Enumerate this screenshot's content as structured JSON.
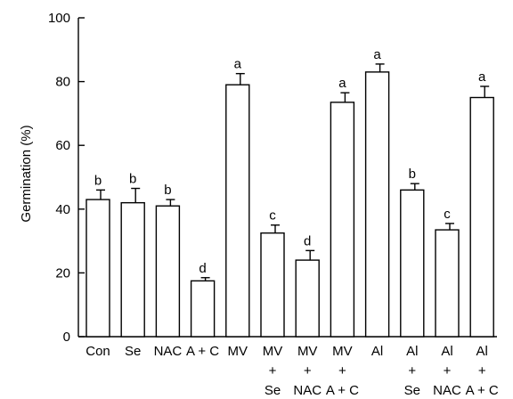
{
  "chart_data": {
    "type": "bar",
    "ylabel": "Germination (%)",
    "xlabel": "",
    "ylim": [
      0,
      100
    ],
    "yticks": [
      0,
      20,
      40,
      60,
      80,
      100
    ],
    "grid": false,
    "categories": [
      [
        "Con"
      ],
      [
        "Se"
      ],
      [
        "NAC"
      ],
      [
        "A + C"
      ],
      [
        "MV"
      ],
      [
        "MV",
        "+",
        "Se"
      ],
      [
        "MV",
        "+",
        "NAC"
      ],
      [
        "MV",
        "+",
        "A + C"
      ],
      [
        "Al"
      ],
      [
        "Al",
        "+",
        "Se"
      ],
      [
        "Al",
        "+",
        "NAC"
      ],
      [
        "Al",
        "+",
        "A + C"
      ]
    ],
    "values": [
      43,
      42,
      41,
      17.5,
      79,
      32.5,
      24,
      73.5,
      83,
      46,
      33.5,
      75
    ],
    "errors": [
      3,
      4.5,
      2,
      1,
      3.5,
      2.5,
      3,
      3,
      2.5,
      2,
      2,
      3.5
    ],
    "significance": [
      "b",
      "b",
      "b",
      "d",
      "a",
      "c",
      "d",
      "a",
      "a",
      "b",
      "c",
      "a"
    ]
  }
}
